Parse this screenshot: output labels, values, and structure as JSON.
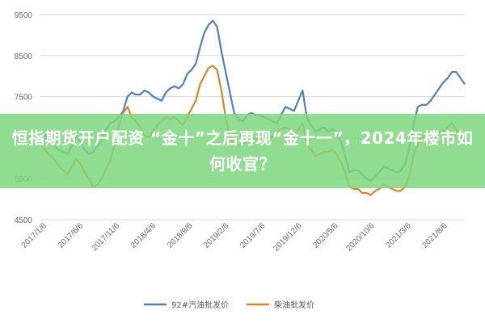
{
  "overlay": {
    "headline": "恒指期货开户配资 “金十”之后再现“金十一”，2024年楼市如何收官？"
  },
  "chart_data": {
    "type": "line",
    "ylim": [
      4500,
      9500
    ],
    "yticks": [
      "9500",
      "8500",
      "7500",
      "6500",
      "5500",
      "4500"
    ],
    "ytick_values": [
      9500,
      8500,
      7500,
      6500,
      5500,
      4500
    ],
    "xtick_labels": [
      "2017/1/6",
      "2017/6/6",
      "2017/11/6",
      "2018/4/6",
      "2018/9/6",
      "2019/2/6",
      "2019/7/6",
      "2019/12/6",
      "2020/5/6",
      "2020/10/6",
      "2021/3/6",
      "2021/8/6"
    ],
    "grid": "horizontal",
    "legend": "bottom-center",
    "series": [
      {
        "name": "92#汽油批发价",
        "color": "#4e81bd",
        "values": [
          6650,
          6500,
          6400,
          6300,
          6200,
          6150,
          6100,
          6300,
          6550,
          6400,
          6200,
          6100,
          6150,
          6300,
          6450,
          6700,
          6850,
          6900,
          7000,
          7150,
          7500,
          7600,
          7550,
          7550,
          7650,
          7600,
          7500,
          7450,
          7400,
          7600,
          7700,
          7750,
          7700,
          7800,
          8050,
          8150,
          8300,
          8700,
          9050,
          9250,
          9350,
          9200,
          8600,
          8100,
          7600,
          7100,
          6950,
          6900,
          7050,
          7100,
          7050,
          7050,
          7000,
          6950,
          6900,
          6850,
          7050,
          7250,
          7200,
          7150,
          7400,
          7650,
          7000,
          6800,
          6650,
          6700,
          6750,
          6650,
          6700,
          6650,
          6400,
          6050,
          5650,
          5700,
          5700,
          5600,
          5500,
          5450,
          5550,
          5650,
          5800,
          5750,
          5700,
          5650,
          5700,
          5850,
          6250,
          6800,
          7250,
          7300,
          7300,
          7400,
          7550,
          7700,
          7850,
          7950,
          8100,
          8100,
          7950,
          7800
        ]
      },
      {
        "name": "柴油批发价",
        "color": "#e0822a",
        "values": [
          6300,
          6150,
          6050,
          5950,
          5800,
          5700,
          5600,
          5800,
          6000,
          5850,
          5650,
          5500,
          5300,
          5350,
          5500,
          5750,
          5950,
          6350,
          6800,
          7100,
          7250,
          7000,
          6900,
          6750,
          6550,
          6500,
          6650,
          6800,
          6900,
          7000,
          6950,
          7000,
          6900,
          6800,
          7000,
          7200,
          7400,
          7800,
          8000,
          8200,
          8250,
          8150,
          7650,
          7000,
          6500,
          6350,
          6300,
          6350,
          6400,
          6500,
          6450,
          6500,
          6550,
          6450,
          6550,
          6650,
          6700,
          6750,
          6700,
          6550,
          6700,
          6850,
          6350,
          6200,
          6050,
          6100,
          6150,
          6150,
          6200,
          6100,
          5900,
          5650,
          5300,
          5250,
          5250,
          5150,
          5150,
          5100,
          5200,
          5250,
          5350,
          5300,
          5250,
          5200,
          5200,
          5300,
          5550,
          6050,
          6350,
          6550,
          6500,
          6450,
          6500,
          6600,
          6650,
          6750,
          6850,
          6700,
          6550,
          6400
        ]
      }
    ]
  }
}
